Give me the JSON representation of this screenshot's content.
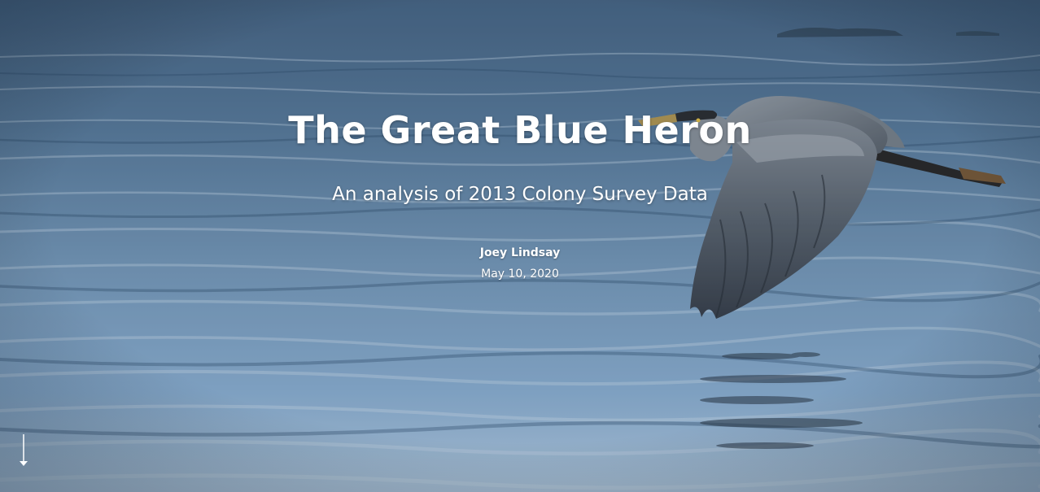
{
  "cover": {
    "title": "The Great Blue Heron",
    "subtitle": "An analysis of 2013 Colony Survey Data",
    "author": "Joey Lindsay",
    "date": "May 10, 2020",
    "background_image": "heron-flying-over-water",
    "scroll_icon": "arrow-down-icon"
  },
  "colors": {
    "text": "#ffffff",
    "water_deep": "#3b5a7a",
    "water_light": "#9fc0de",
    "heron_body": "#6d7682"
  }
}
